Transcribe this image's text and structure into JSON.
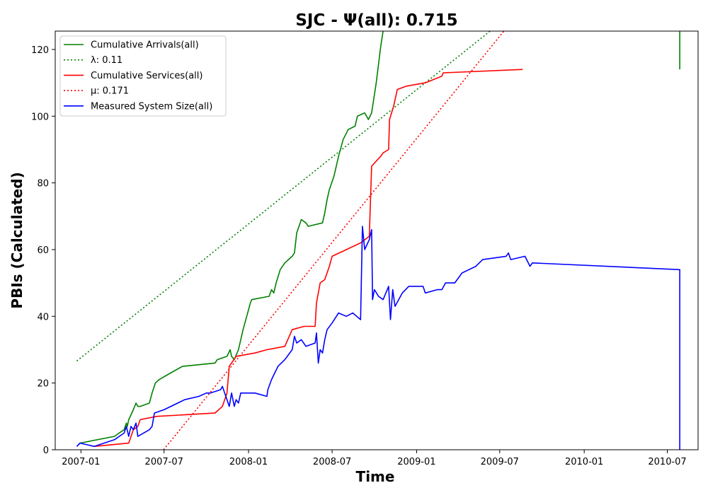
{
  "chart_data": {
    "type": "line",
    "title": "SJC -  Ψ(all): 0.715",
    "xlabel": "Time",
    "ylabel": "PBIs (Calculated)",
    "xlim": [
      "2006-11-06",
      "2010-09-06"
    ],
    "ylim": [
      0,
      125.5
    ],
    "x_ticks": [
      "2007-01",
      "2007-07",
      "2008-01",
      "2008-07",
      "2009-01",
      "2009-07",
      "2010-01",
      "2010-07"
    ],
    "y_ticks": [
      0,
      20,
      40,
      60,
      80,
      100,
      120
    ],
    "grid": false,
    "legend_position": "upper-left",
    "series": [
      {
        "name": "Cumulative Arrivals(all)",
        "color": "#008000",
        "style": "solid",
        "points": [
          [
            "2006-12-23",
            1
          ],
          [
            "2006-12-30",
            2
          ],
          [
            "2007-03-15",
            4
          ],
          [
            "2007-03-25",
            5
          ],
          [
            "2007-04-05",
            6
          ],
          [
            "2007-04-10",
            8
          ],
          [
            "2007-04-12",
            7
          ],
          [
            "2007-04-15",
            9
          ],
          [
            "2007-04-25",
            12
          ],
          [
            "2007-05-01",
            14
          ],
          [
            "2007-05-05",
            13
          ],
          [
            "2007-05-10",
            13
          ],
          [
            "2007-05-30",
            14
          ],
          [
            "2007-06-05",
            17
          ],
          [
            "2007-06-12",
            20
          ],
          [
            "2007-06-20",
            21
          ],
          [
            "2007-07-15",
            23
          ],
          [
            "2007-08-10",
            25
          ],
          [
            "2007-10-20",
            26
          ],
          [
            "2007-10-25",
            27
          ],
          [
            "2007-11-15",
            28
          ],
          [
            "2007-11-22",
            30
          ],
          [
            "2007-11-25",
            28
          ],
          [
            "2007-12-01",
            27
          ],
          [
            "2007-12-10",
            30
          ],
          [
            "2007-12-20",
            36
          ],
          [
            "2007-12-28",
            40
          ],
          [
            "2008-01-05",
            44
          ],
          [
            "2008-01-08",
            45
          ],
          [
            "2008-02-15",
            46
          ],
          [
            "2008-02-20",
            48
          ],
          [
            "2008-02-25",
            47
          ],
          [
            "2008-03-01",
            50
          ],
          [
            "2008-03-10",
            54
          ],
          [
            "2008-03-20",
            56
          ],
          [
            "2008-04-05",
            58
          ],
          [
            "2008-04-10",
            59
          ],
          [
            "2008-04-15",
            65
          ],
          [
            "2008-04-25",
            69
          ],
          [
            "2008-05-05",
            68
          ],
          [
            "2008-05-10",
            67
          ],
          [
            "2008-06-10",
            68
          ],
          [
            "2008-06-15",
            71
          ],
          [
            "2008-06-20",
            75
          ],
          [
            "2008-06-25",
            78
          ],
          [
            "2008-07-05",
            82
          ],
          [
            "2008-07-15",
            88
          ],
          [
            "2008-07-25",
            93
          ],
          [
            "2008-08-05",
            96
          ],
          [
            "2008-08-20",
            97
          ],
          [
            "2008-08-25",
            100
          ],
          [
            "2008-09-10",
            101
          ],
          [
            "2008-09-18",
            99
          ],
          [
            "2008-09-25",
            101
          ],
          [
            "2008-10-05",
            110
          ],
          [
            "2008-10-15",
            121
          ],
          [
            "2008-10-20",
            125.5
          ]
        ]
      },
      {
        "name": "λ: 0.11",
        "color": "#008000",
        "style": "dotted",
        "points": [
          [
            "2006-12-23",
            26.6
          ],
          [
            "2009-06-10",
            125.5
          ]
        ]
      },
      {
        "name": "Cumulative Services(all)",
        "color": "#ff0000",
        "style": "solid",
        "points": [
          [
            "2007-01-30",
            1
          ],
          [
            "2007-04-15",
            2
          ],
          [
            "2007-04-25",
            6
          ],
          [
            "2007-05-05",
            7
          ],
          [
            "2007-05-10",
            9
          ],
          [
            "2007-06-15",
            10
          ],
          [
            "2007-10-20",
            11
          ],
          [
            "2007-11-05",
            13
          ],
          [
            "2007-11-15",
            17
          ],
          [
            "2007-11-20",
            25
          ],
          [
            "2007-12-05",
            28
          ],
          [
            "2008-01-15",
            29
          ],
          [
            "2008-02-10",
            30
          ],
          [
            "2008-03-20",
            31
          ],
          [
            "2008-04-05",
            36
          ],
          [
            "2008-05-01",
            37
          ],
          [
            "2008-05-25",
            37
          ],
          [
            "2008-05-28",
            44
          ],
          [
            "2008-06-05",
            50
          ],
          [
            "2008-06-15",
            51
          ],
          [
            "2008-06-25",
            55
          ],
          [
            "2008-07-01",
            58
          ],
          [
            "2008-08-01",
            60
          ],
          [
            "2008-09-01",
            62
          ],
          [
            "2008-09-20",
            64
          ],
          [
            "2008-09-25",
            85
          ],
          [
            "2008-10-15",
            88
          ],
          [
            "2008-10-20",
            89
          ],
          [
            "2008-11-01",
            90
          ],
          [
            "2008-11-03",
            99
          ],
          [
            "2008-11-12",
            103
          ],
          [
            "2008-11-20",
            108
          ],
          [
            "2008-12-10",
            109
          ],
          [
            "2009-01-20",
            110
          ],
          [
            "2009-02-25",
            112
          ],
          [
            "2009-02-28",
            113
          ],
          [
            "2009-08-20",
            114
          ]
        ]
      },
      {
        "name": "μ: 0.171",
        "color": "#ff0000",
        "style": "dotted",
        "points": [
          [
            "2007-06-30",
            0
          ],
          [
            "2009-07-10",
            125.5
          ]
        ]
      },
      {
        "name": "Measured System Size(all)",
        "color": "#0000ff",
        "style": "solid",
        "points": [
          [
            "2006-12-23",
            1
          ],
          [
            "2006-12-30",
            2
          ],
          [
            "2007-01-30",
            1
          ],
          [
            "2007-03-15",
            3
          ],
          [
            "2007-04-05",
            5
          ],
          [
            "2007-04-10",
            7
          ],
          [
            "2007-04-15",
            4
          ],
          [
            "2007-04-20",
            7
          ],
          [
            "2007-04-25",
            6
          ],
          [
            "2007-05-01",
            8
          ],
          [
            "2007-05-05",
            4
          ],
          [
            "2007-05-30",
            6
          ],
          [
            "2007-06-05",
            7
          ],
          [
            "2007-06-10",
            11
          ],
          [
            "2007-07-01",
            12
          ],
          [
            "2007-08-15",
            15
          ],
          [
            "2007-09-15",
            16
          ],
          [
            "2007-10-01",
            17
          ],
          [
            "2007-10-10",
            17
          ],
          [
            "2007-11-01",
            18
          ],
          [
            "2007-11-05",
            19
          ],
          [
            "2007-11-10",
            17
          ],
          [
            "2007-11-15",
            15
          ],
          [
            "2007-11-20",
            13
          ],
          [
            "2007-11-25",
            17
          ],
          [
            "2007-12-01",
            13
          ],
          [
            "2007-12-05",
            15
          ],
          [
            "2007-12-10",
            14
          ],
          [
            "2007-12-15",
            17
          ],
          [
            "2008-01-15",
            17
          ],
          [
            "2008-02-10",
            16
          ],
          [
            "2008-02-12",
            18
          ],
          [
            "2008-02-20",
            21
          ],
          [
            "2008-03-05",
            25
          ],
          [
            "2008-03-20",
            27
          ],
          [
            "2008-04-05",
            30
          ],
          [
            "2008-04-10",
            34
          ],
          [
            "2008-04-15",
            32
          ],
          [
            "2008-04-25",
            33
          ],
          [
            "2008-05-05",
            31
          ],
          [
            "2008-05-25",
            32
          ],
          [
            "2008-05-28",
            35
          ],
          [
            "2008-06-01",
            26
          ],
          [
            "2008-06-05",
            30
          ],
          [
            "2008-06-10",
            29
          ],
          [
            "2008-06-15",
            33
          ],
          [
            "2008-06-20",
            36
          ],
          [
            "2008-07-01",
            38
          ],
          [
            "2008-07-15",
            41
          ],
          [
            "2008-08-01",
            40
          ],
          [
            "2008-08-15",
            41
          ],
          [
            "2008-09-01",
            39
          ],
          [
            "2008-09-05",
            67
          ],
          [
            "2008-09-10",
            60
          ],
          [
            "2008-09-20",
            63
          ],
          [
            "2008-09-25",
            66
          ],
          [
            "2008-09-27",
            45
          ],
          [
            "2008-10-01",
            48
          ],
          [
            "2008-10-10",
            46
          ],
          [
            "2008-10-20",
            45
          ],
          [
            "2008-11-01",
            49
          ],
          [
            "2008-11-05",
            39
          ],
          [
            "2008-11-10",
            48
          ],
          [
            "2008-11-15",
            43
          ],
          [
            "2008-12-01",
            47
          ],
          [
            "2008-12-15",
            49
          ],
          [
            "2009-01-15",
            49
          ],
          [
            "2009-01-20",
            47
          ],
          [
            "2009-02-15",
            48
          ],
          [
            "2009-02-25",
            48
          ],
          [
            "2009-03-05",
            50
          ],
          [
            "2009-03-25",
            50
          ],
          [
            "2009-04-10",
            53
          ],
          [
            "2009-05-10",
            55
          ],
          [
            "2009-05-25",
            57
          ],
          [
            "2009-07-15",
            58
          ],
          [
            "2009-07-20",
            59
          ],
          [
            "2009-07-25",
            57
          ],
          [
            "2009-08-25",
            58
          ],
          [
            "2009-09-05",
            55
          ],
          [
            "2009-09-10",
            56
          ],
          [
            "2010-07-28",
            54
          ],
          [
            "2010-07-28",
            0
          ]
        ]
      }
    ],
    "extra_segments": [
      {
        "series": "Cumulative Arrivals(all)",
        "color": "#008000",
        "points": [
          [
            "2010-07-28",
            125.5
          ],
          [
            "2010-07-28",
            114
          ]
        ]
      }
    ]
  }
}
